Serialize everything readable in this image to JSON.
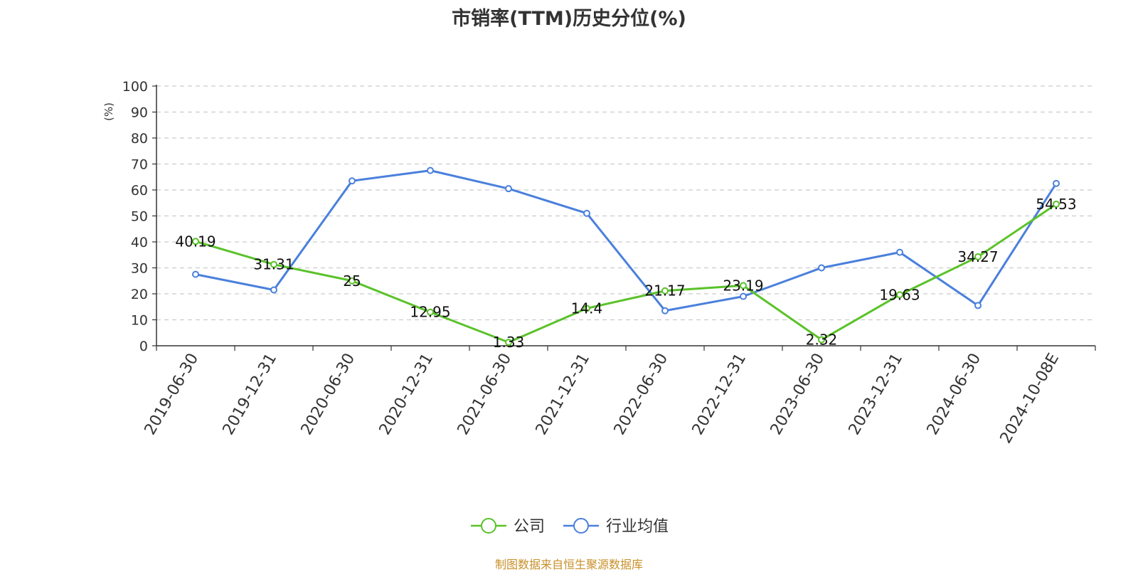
{
  "chart_data": {
    "type": "line",
    "title": "市销率(TTM)历史分位(%)",
    "ylabel": "(%)",
    "xlabel": "",
    "ylim": [
      0,
      100
    ],
    "yticks": [
      0,
      10,
      20,
      30,
      40,
      50,
      60,
      70,
      80,
      90,
      100
    ],
    "grid": true,
    "legend_position": "bottom",
    "categories": [
      "2019-06-30",
      "2019-12-31",
      "2020-06-30",
      "2020-12-31",
      "2021-06-30",
      "2021-12-31",
      "2022-06-30",
      "2022-12-31",
      "2023-06-30",
      "2023-12-31",
      "2024-06-30",
      "2024-10-08E"
    ],
    "series": [
      {
        "name": "公司",
        "color": "#5ac229",
        "values": [
          40.19,
          31.31,
          25,
          12.95,
          1.33,
          14.4,
          21.17,
          23.19,
          2.32,
          19.63,
          34.27,
          54.53
        ],
        "labels": [
          "40.19",
          "31.31",
          "25",
          "12.95",
          "1.33",
          "14.4",
          "21.17",
          "23.19",
          "2.32",
          "19.63",
          "34.27",
          "54.53"
        ]
      },
      {
        "name": "行业均值",
        "color": "#4a80dc",
        "values": [
          27.5,
          21.5,
          63.5,
          67.5,
          60.5,
          51,
          13.5,
          19,
          30,
          36,
          15.5,
          62.5
        ]
      }
    ]
  },
  "source_note": "制图数据来自恒生聚源数据库",
  "colors": {
    "ylabel": "#e00000",
    "source": "#c8902a"
  }
}
